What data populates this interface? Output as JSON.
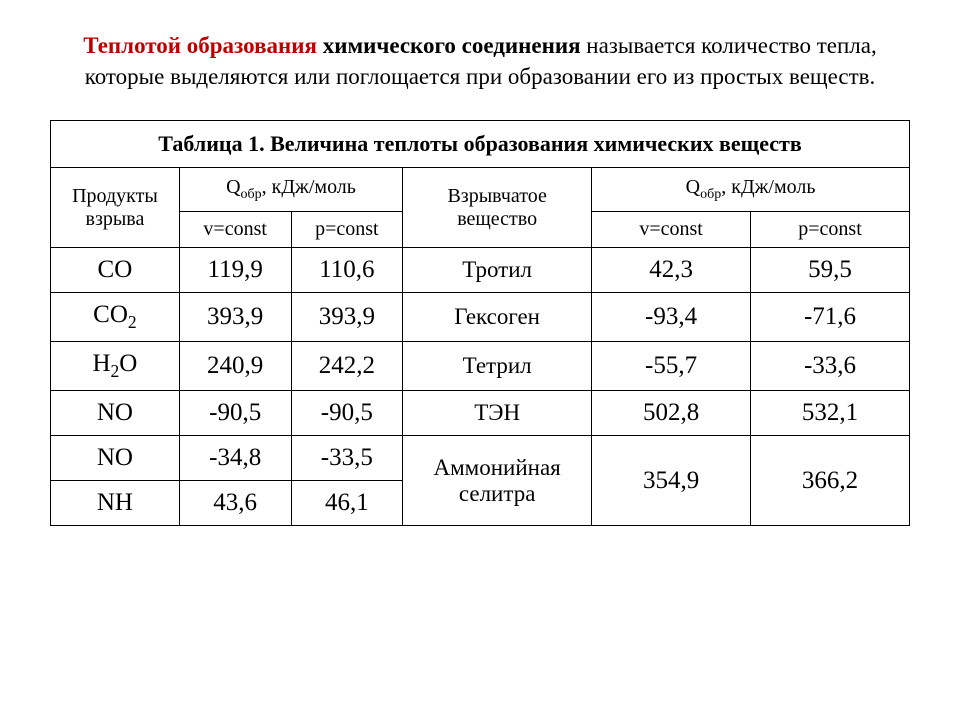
{
  "heading": {
    "part_red": "Теплотой образования",
    "part_bold": " химического соединения",
    "part_rest": "  называется количество тепла, которые выделяются или поглощается при образовании его из простых веществ."
  },
  "table": {
    "title": "Таблица 1. Величина теплоты образования химических веществ",
    "headers": {
      "products": "Продукты взрыва",
      "q_unit": "Q",
      "q_sub": "обр",
      "q_tail": ", кДж/моль",
      "substance": "Взрывчатое вещество",
      "vconst": "v=const",
      "pconst": "p=const"
    },
    "rows": [
      {
        "prod": "CO",
        "v1": "119,9",
        "p1": "110,6",
        "subst": "Тротил",
        "v2": "42,3",
        "p2": "59,5"
      },
      {
        "prod": "CO2",
        "v1": "393,9",
        "p1": "393,9",
        "subst": "Гексоген",
        "v2": "-93,4",
        "p2": "-71,6"
      },
      {
        "prod": "H2O",
        "v1": "240,9",
        "p1": "242,2",
        "subst": "Тетрил",
        "v2": "-55,7",
        "p2": "-33,6"
      },
      {
        "prod": "NO",
        "v1": "-90,5",
        "p1": "-90,5",
        "subst": "ТЭН",
        "v2": "502,8",
        "p2": "532,1"
      },
      {
        "prod": "NO",
        "v1": "-34,8",
        "p1": "-33,5",
        "subst": "Аммонийная селитра",
        "v2": "354,9",
        "p2": "366,2"
      },
      {
        "prod": "NH",
        "v1": "43,6",
        "p1": "46,1"
      }
    ],
    "styling": {
      "border_color": "#000000",
      "title_fontsize": 22,
      "header_fontsize": 20,
      "cell_fontsize": 25,
      "font_family": "Times New Roman",
      "background": "#ffffff",
      "heading_red_color": "#c00000"
    }
  }
}
